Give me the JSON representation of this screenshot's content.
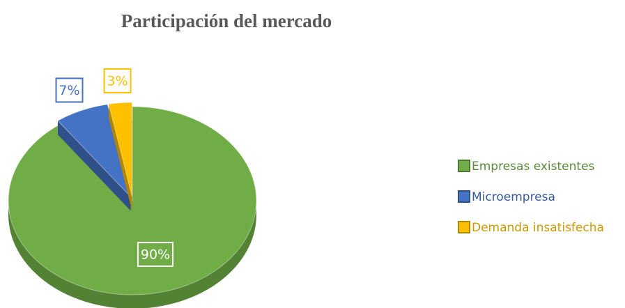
{
  "chart_data": {
    "type": "pie",
    "title": "Participación del mercado",
    "categories": [
      "Empresas existentes",
      "Microempresa",
      "Demanda insatisfecha"
    ],
    "values": [
      90,
      7,
      3
    ],
    "value_labels": [
      "90%",
      "7%",
      "3%"
    ],
    "colors": [
      "#70ad47",
      "#4472c4",
      "#ffc000"
    ],
    "legend": "right"
  }
}
